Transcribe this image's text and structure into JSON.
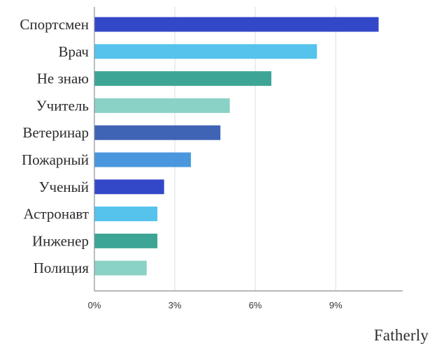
{
  "chart_data": {
    "type": "bar",
    "orientation": "horizontal",
    "categories": [
      "Спортсмен",
      "Врач",
      "Не знаю",
      "Учитель",
      "Ветеринар",
      "Пожарный",
      "Ученый",
      "Астронавт",
      "Инженер",
      "Полиция"
    ],
    "values": [
      10.6,
      8.3,
      6.6,
      5.05,
      4.7,
      3.6,
      2.6,
      2.35,
      2.35,
      1.95
    ],
    "bar_colors": [
      "#3347c9",
      "#55c3ec",
      "#3ea596",
      "#8ad1c6",
      "#3f63b5",
      "#4a97de",
      "#3347c9",
      "#55c3ec",
      "#3ea596",
      "#8ad1c6"
    ],
    "x_ticks": [
      0,
      3,
      6,
      9
    ],
    "x_tick_labels": [
      "0%",
      "3%",
      "6%",
      "9%"
    ],
    "xlim": [
      0,
      11.5
    ],
    "grid": true,
    "title": "",
    "xlabel": "",
    "ylabel": ""
  },
  "branding": {
    "logo_text": "Fatherly"
  }
}
